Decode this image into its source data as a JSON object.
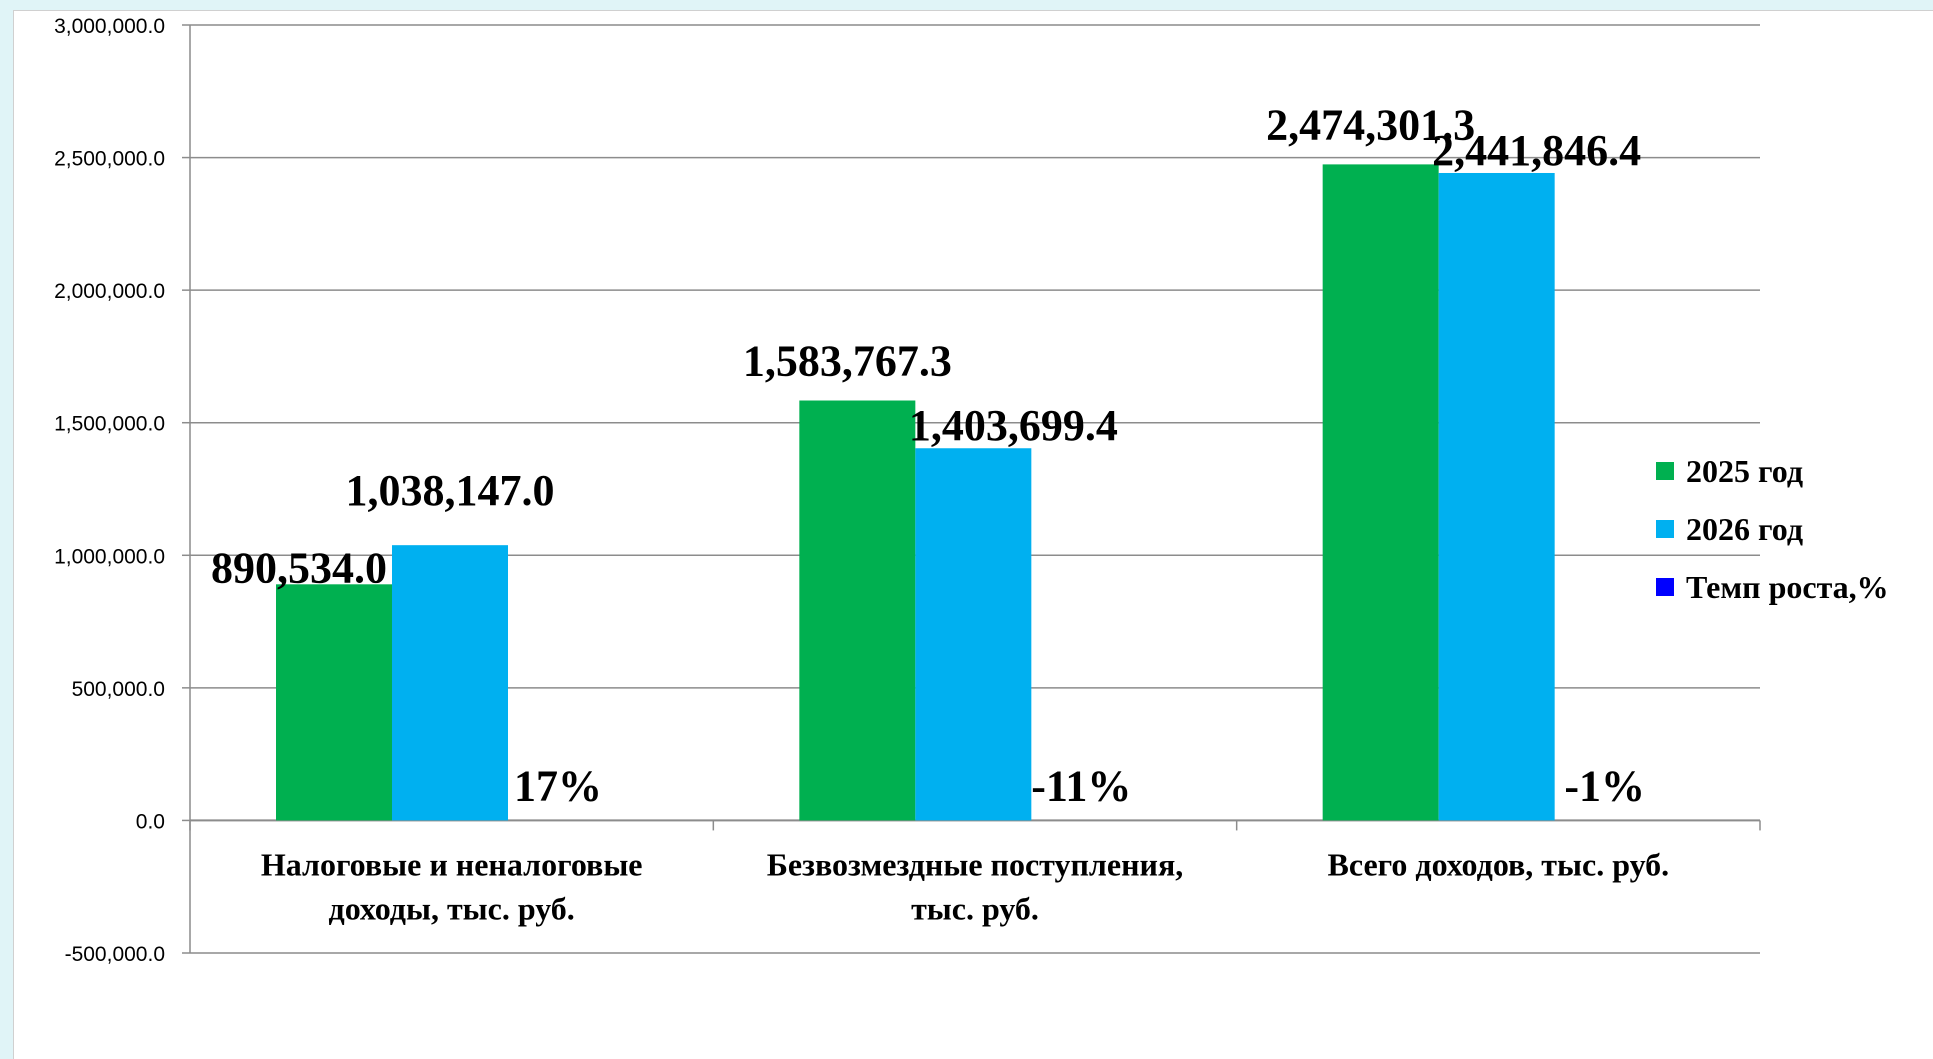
{
  "chart_data": {
    "type": "bar",
    "categories": [
      [
        "Налоговые и неналоговые",
        "доходы, тыс. руб."
      ],
      [
        "Безвозмездные поступления,",
        "тыс. руб."
      ],
      [
        "Всего доходов, тыс. руб."
      ]
    ],
    "series": [
      {
        "name": "2025 год",
        "values": [
          890534.0,
          1583767.3,
          2474301.3
        ],
        "labels": [
          "890,534.0",
          "1,583,767.3",
          "2,474,301.3"
        ],
        "color": "#00b050"
      },
      {
        "name": "2026 год",
        "values": [
          1038147.0,
          1403699.4,
          2441846.4
        ],
        "labels": [
          "1,038,147.0",
          "1,403,699.4",
          "2,441,846.4"
        ],
        "color": "#00b0f0"
      },
      {
        "name": "Темп роста,%",
        "values": [
          17,
          -11,
          -1
        ],
        "labels": [
          "17%",
          "-11%",
          "-1%"
        ],
        "color": "#0000ff"
      }
    ],
    "ylim": [
      -500000,
      3000000
    ],
    "yticks": [
      {
        "value": 3000000,
        "label": "3,000,000.0"
      },
      {
        "value": 2500000,
        "label": "2,500,000.0"
      },
      {
        "value": 2000000,
        "label": "2,000,000.0"
      },
      {
        "value": 1500000,
        "label": "1,500,000.0"
      },
      {
        "value": 1000000,
        "label": "1,000,000.0"
      },
      {
        "value": 500000,
        "label": "500,000.0"
      },
      {
        "value": 0,
        "label": "0.0"
      },
      {
        "value": -500000,
        "label": "-500,000.0"
      }
    ],
    "grid": true,
    "legend": "right",
    "title": "",
    "xlabel": "",
    "ylabel": ""
  }
}
